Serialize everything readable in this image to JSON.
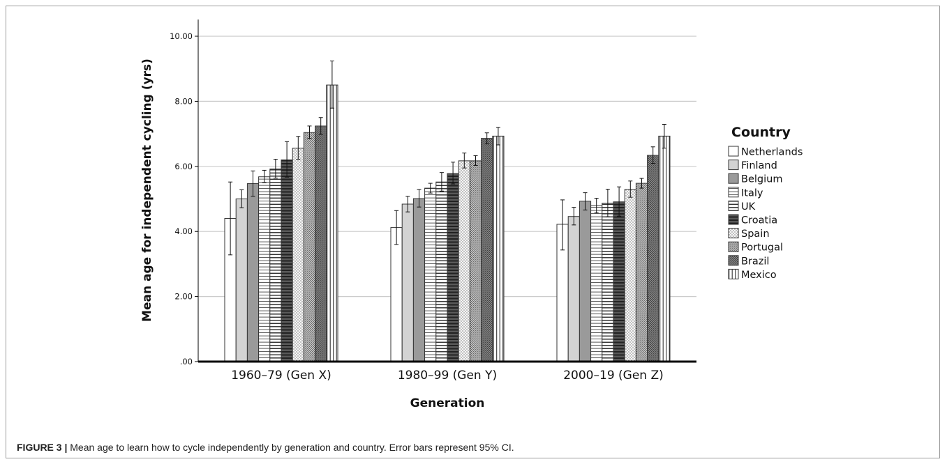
{
  "caption": {
    "label": "FIGURE 3 |",
    "text": " Mean age to learn how to cycle independently by generation and country. Error bars represent 95% CI."
  },
  "colors": {
    "gridline": "#cccccc",
    "bar_stroke": "#333333",
    "axis": "#000000"
  },
  "chart_data": {
    "type": "bar",
    "title": "",
    "xlabel": "Generation",
    "ylabel": "Mean age for independent cycling (yrs)",
    "ylim": [
      0,
      10
    ],
    "yticks": [
      {
        "value": 0,
        "label": ".00"
      },
      {
        "value": 2,
        "label": "2.00"
      },
      {
        "value": 4,
        "label": "4.00"
      },
      {
        "value": 6,
        "label": "6.00"
      },
      {
        "value": 8,
        "label": "8.00"
      },
      {
        "value": 10,
        "label": "10.00"
      }
    ],
    "grid": true,
    "legend_title": "Country",
    "legend_position": "right",
    "categories": [
      "1960–79 (Gen X)",
      "1980–99 (Gen Y)",
      "2000–19 (Gen Z)"
    ],
    "error_bars": "95% CI",
    "series": [
      {
        "name": "Netherlands",
        "pattern": "white",
        "values": [
          4.4,
          4.12,
          4.22
        ],
        "ci_low": [
          3.28,
          3.6,
          3.43
        ],
        "ci_high": [
          5.52,
          4.64,
          4.97
        ]
      },
      {
        "name": "Finland",
        "pattern": "light-gray",
        "values": [
          5.0,
          4.84,
          4.46
        ],
        "ci_low": [
          4.73,
          4.6,
          4.2
        ],
        "ci_high": [
          5.28,
          5.08,
          4.74
        ]
      },
      {
        "name": "Belgium",
        "pattern": "mid-gray",
        "values": [
          5.47,
          5.01,
          4.93
        ],
        "ci_low": [
          5.08,
          4.75,
          4.66
        ],
        "ci_high": [
          5.86,
          5.29,
          5.19
        ]
      },
      {
        "name": "Italy",
        "pattern": "thin-horizontal-lines",
        "values": [
          5.68,
          5.33,
          4.79
        ],
        "ci_low": [
          5.5,
          5.18,
          4.57
        ],
        "ci_high": [
          5.88,
          5.48,
          5.02
        ]
      },
      {
        "name": "UK",
        "pattern": "horizontal-lines",
        "values": [
          5.92,
          5.52,
          4.87
        ],
        "ci_low": [
          5.64,
          5.24,
          4.45
        ],
        "ci_high": [
          6.22,
          5.81,
          5.3
        ]
      },
      {
        "name": "Croatia",
        "pattern": "dark-horizontal-lines",
        "values": [
          6.2,
          5.78,
          4.91
        ],
        "ci_low": [
          5.67,
          5.46,
          4.47
        ],
        "ci_high": [
          6.76,
          6.13,
          5.37
        ]
      },
      {
        "name": "Spain",
        "pattern": "dots-light",
        "values": [
          6.56,
          6.17,
          5.29
        ],
        "ci_low": [
          6.22,
          5.95,
          5.05
        ],
        "ci_high": [
          6.92,
          6.41,
          5.55
        ]
      },
      {
        "name": "Portugal",
        "pattern": "dots-medium",
        "values": [
          7.04,
          6.17,
          5.48
        ],
        "ci_low": [
          6.86,
          6.03,
          5.33
        ],
        "ci_high": [
          7.24,
          6.33,
          5.63
        ]
      },
      {
        "name": "Brazil",
        "pattern": "dots-dark",
        "values": [
          7.24,
          6.86,
          6.34
        ],
        "ci_low": [
          6.98,
          6.69,
          6.09
        ],
        "ci_high": [
          7.5,
          7.03,
          6.6
        ]
      },
      {
        "name": "Mexico",
        "pattern": "vertical-lines",
        "values": [
          8.5,
          6.93,
          6.93
        ],
        "ci_low": [
          7.79,
          6.66,
          6.56
        ],
        "ci_high": [
          9.24,
          7.2,
          7.29
        ]
      }
    ]
  }
}
